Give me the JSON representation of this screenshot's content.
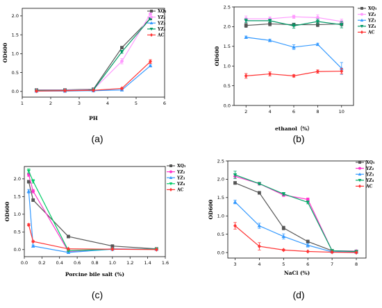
{
  "chart_data": [
    {
      "type": "line",
      "caption": "(a)",
      "xlabel": "PH",
      "ylabel": "OD600",
      "xlim": [
        1,
        6
      ],
      "ylim": [
        -0.15,
        2.2
      ],
      "xticks": [
        1,
        2,
        3,
        4,
        5,
        6
      ],
      "yticks": [
        0.0,
        0.5,
        1.0,
        1.5,
        2.0
      ],
      "x": [
        1.5,
        2.5,
        3.5,
        4.5,
        5.5
      ],
      "legend": "top-left",
      "series": [
        {
          "name": "XQ₁",
          "color": "#555555",
          "marker": "square",
          "values": [
            0.04,
            0.04,
            0.06,
            1.16,
            1.93
          ],
          "errors": [
            0.01,
            0.01,
            0.01,
            0.03,
            0.03
          ]
        },
        {
          "name": "YZ₂",
          "color": "#ff99ff",
          "marker": "circle",
          "values": [
            0.03,
            0.03,
            0.05,
            0.8,
            2.05
          ],
          "errors": [
            0.01,
            0.01,
            0.01,
            0.07,
            0.03
          ]
        },
        {
          "name": "YZ₃",
          "color": "#3399ff",
          "marker": "triangle",
          "values": [
            0.01,
            0.01,
            0.02,
            0.04,
            0.68
          ],
          "errors": [
            0.01,
            0.01,
            0.01,
            0.01,
            0.03
          ]
        },
        {
          "name": "YZ₄",
          "color": "#009966",
          "marker": "triangle-down",
          "values": [
            0.02,
            0.02,
            0.04,
            1.05,
            1.93
          ],
          "errors": [
            0.01,
            0.01,
            0.01,
            0.04,
            0.03
          ]
        },
        {
          "name": "AC",
          "color": "#ff3333",
          "marker": "diamond",
          "values": [
            0.01,
            0.02,
            0.03,
            0.08,
            0.79
          ],
          "errors": [
            0.01,
            0.01,
            0.01,
            0.02,
            0.05
          ]
        }
      ]
    },
    {
      "type": "line",
      "caption": "(b)",
      "xlabel": "ethanol（%）",
      "ylabel": "OD600",
      "xlim": [
        1,
        11
      ],
      "ylim": [
        0,
        2.5
      ],
      "xticks": [
        2,
        4,
        6,
        8,
        10
      ],
      "yticks": [
        0.0,
        0.5,
        1.0,
        1.5,
        2.0,
        2.5
      ],
      "x": [
        2,
        4,
        6,
        8,
        10
      ],
      "legend": "top-right",
      "series": [
        {
          "name": "XQ₁",
          "color": "#555555",
          "marker": "square",
          "values": [
            2.03,
            2.07,
            2.05,
            2.05,
            2.07
          ],
          "errors": [
            0.05,
            0.05,
            0.04,
            0.05,
            0.05
          ]
        },
        {
          "name": "YZ₂",
          "color": "#ff99ff",
          "marker": "circle",
          "values": [
            2.2,
            2.2,
            2.25,
            2.23,
            2.13
          ],
          "errors": [
            0.07,
            0.05,
            0.04,
            0.07,
            0.06
          ]
        },
        {
          "name": "YZ₃",
          "color": "#3399ff",
          "marker": "triangle",
          "values": [
            1.73,
            1.65,
            1.48,
            1.55,
            0.94
          ],
          "errors": [
            0.03,
            0.03,
            0.06,
            0.03,
            0.15
          ]
        },
        {
          "name": "YZ₄",
          "color": "#009966",
          "marker": "triangle-down",
          "values": [
            2.15,
            2.15,
            2.02,
            2.13,
            2.05
          ],
          "errors": [
            0.05,
            0.04,
            0.06,
            0.06,
            0.08
          ]
        },
        {
          "name": "AC",
          "color": "#ff3333",
          "marker": "diamond",
          "values": [
            0.75,
            0.8,
            0.75,
            0.86,
            0.87
          ],
          "errors": [
            0.06,
            0.05,
            0.03,
            0.04,
            0.07
          ]
        }
      ]
    },
    {
      "type": "line",
      "caption": "(c)",
      "xlabel": "Porcine bile salt (%)",
      "ylabel": "OD600",
      "xlim": [
        0,
        1.6
      ],
      "ylim": [
        -0.2,
        2.35
      ],
      "xticks": [
        0.0,
        0.2,
        0.4,
        0.6,
        0.8,
        1.0,
        1.2,
        1.4,
        1.6
      ],
      "yticks": [
        0.0,
        0.5,
        1.0,
        1.5,
        2.0
      ],
      "x": [
        0.05,
        0.1,
        0.5,
        1.0,
        1.5
      ],
      "legend": "top-right",
      "series": [
        {
          "name": "XQ₁",
          "color": "#555555",
          "marker": "square",
          "values": [
            1.92,
            1.4,
            0.37,
            0.1,
            0.02
          ],
          "errors": [
            0.04,
            0.04,
            0.04,
            0.02,
            0.01
          ]
        },
        {
          "name": "YZ₂",
          "color": "#ff33cc",
          "marker": "circle",
          "values": [
            2.12,
            1.65,
            -0.05,
            0.02,
            0.01
          ],
          "errors": [
            0.05,
            0.05,
            0.02,
            0.01,
            0.01
          ]
        },
        {
          "name": "YZ₃",
          "color": "#3399ff",
          "marker": "triangle",
          "values": [
            1.65,
            0.1,
            -0.08,
            0.01,
            0.01
          ],
          "errors": [
            0.05,
            0.03,
            0.02,
            0.01,
            0.01
          ]
        },
        {
          "name": "YZ₄",
          "color": "#00cc66",
          "marker": "triangle-down",
          "values": [
            2.22,
            1.93,
            -0.03,
            0.01,
            0.01
          ],
          "errors": [
            0.06,
            0.05,
            0.02,
            0.01,
            0.01
          ]
        },
        {
          "name": "AC",
          "color": "#ff3333",
          "marker": "diamond",
          "values": [
            0.7,
            0.23,
            0.02,
            0.01,
            0.0
          ],
          "errors": [
            0.03,
            0.02,
            0.01,
            0.01,
            0.01
          ]
        }
      ]
    },
    {
      "type": "line",
      "caption": "(d)",
      "xlabel": "NaCl (%)",
      "ylabel": "OD600",
      "xlim": [
        2.7,
        8.4
      ],
      "ylim": [
        -0.15,
        2.5
      ],
      "xticks": [
        3,
        4,
        5,
        6,
        7,
        8
      ],
      "yticks": [
        0.0,
        0.5,
        1.0,
        1.5,
        2.0,
        2.5
      ],
      "x": [
        3,
        4,
        5,
        6,
        7,
        8
      ],
      "legend": "top-right",
      "series": [
        {
          "name": "XQ₁",
          "color": "#555555",
          "marker": "square",
          "values": [
            1.9,
            1.63,
            0.67,
            0.3,
            0.05,
            0.03
          ],
          "errors": [
            0.04,
            0.04,
            0.05,
            0.04,
            0.02,
            0.01
          ]
        },
        {
          "name": "YZ₂",
          "color": "#ff33cc",
          "marker": "circle",
          "values": [
            2.08,
            1.88,
            1.57,
            1.45,
            0.05,
            0.04
          ],
          "errors": [
            0.06,
            0.04,
            0.04,
            0.04,
            0.02,
            0.01
          ]
        },
        {
          "name": "YZ₃",
          "color": "#3399ff",
          "marker": "triangle",
          "values": [
            1.38,
            0.73,
            0.44,
            0.2,
            0.02,
            0.01
          ],
          "errors": [
            0.05,
            0.07,
            0.07,
            0.05,
            0.01,
            0.01
          ]
        },
        {
          "name": "YZ₄",
          "color": "#00aa66",
          "marker": "triangle-down",
          "values": [
            2.12,
            1.88,
            1.6,
            1.37,
            0.05,
            0.03
          ],
          "errors": [
            0.1,
            0.03,
            0.04,
            0.04,
            0.02,
            0.01
          ]
        },
        {
          "name": "AC",
          "color": "#ff3333",
          "marker": "diamond",
          "values": [
            0.73,
            0.17,
            0.07,
            0.03,
            0.01,
            0.0
          ],
          "errors": [
            0.09,
            0.1,
            0.02,
            0.01,
            0.01,
            0.01
          ]
        }
      ]
    }
  ]
}
